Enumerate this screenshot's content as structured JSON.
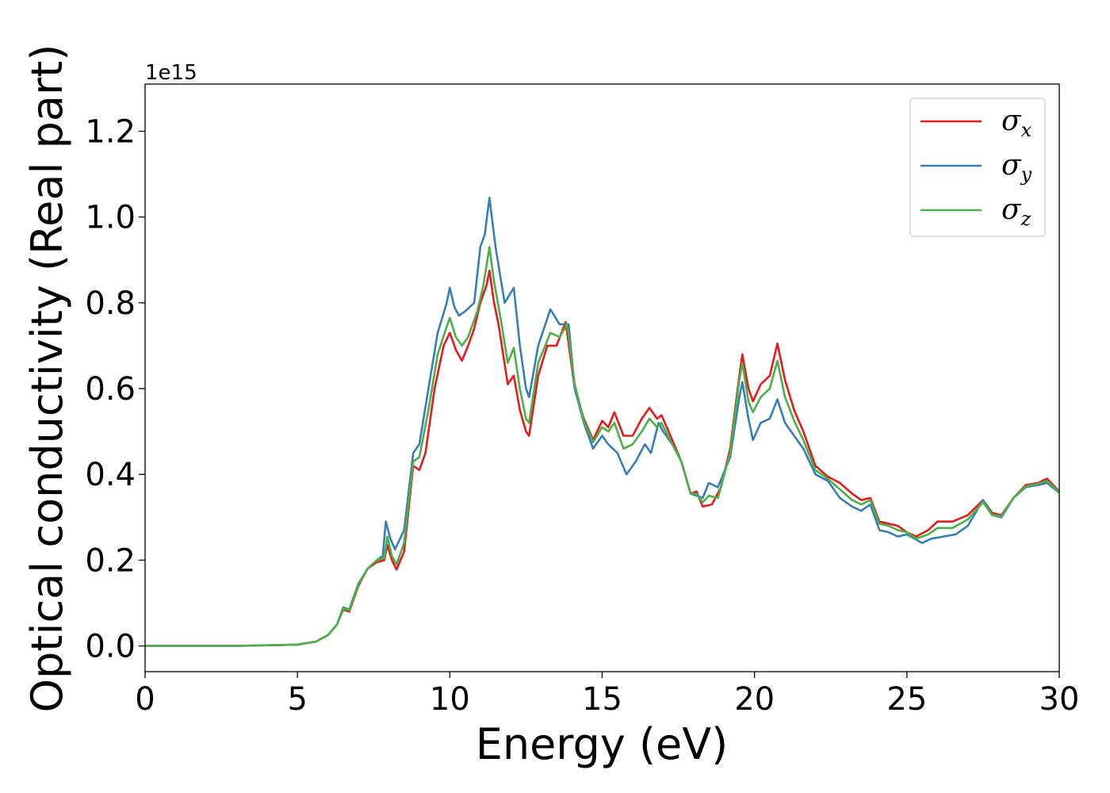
{
  "chart_data": {
    "type": "line",
    "title": "",
    "xlabel": "Energy (eV)",
    "ylabel": "Optical conductivity (Real part)",
    "y_offset_label": "1e15",
    "y_multiplier": 1000000000000000.0,
    "xlim": [
      0,
      30
    ],
    "ylim": [
      -0.06,
      1.31
    ],
    "xticks": [
      0,
      5,
      10,
      15,
      20,
      25,
      30
    ],
    "xtick_labels": [
      "0",
      "5",
      "10",
      "15",
      "20",
      "25",
      "30"
    ],
    "yticks": [
      0.0,
      0.2,
      0.4,
      0.6,
      0.8,
      1.0,
      1.2
    ],
    "ytick_labels": [
      "0.0",
      "0.2",
      "0.4",
      "0.6",
      "0.8",
      "1.0",
      "1.2"
    ],
    "grid": false,
    "legend_position": "top-right",
    "series": [
      {
        "name": "σx",
        "symbol": "σ",
        "subscript": "x",
        "color": "#e41a1c",
        "points": [
          [
            0,
            0
          ],
          [
            3,
            0
          ],
          [
            5,
            0.003
          ],
          [
            5.6,
            0.01
          ],
          [
            6.0,
            0.025
          ],
          [
            6.3,
            0.05
          ],
          [
            6.5,
            0.085
          ],
          [
            6.7,
            0.08
          ],
          [
            7.0,
            0.14
          ],
          [
            7.3,
            0.18
          ],
          [
            7.6,
            0.195
          ],
          [
            7.85,
            0.2
          ],
          [
            7.95,
            0.235
          ],
          [
            8.1,
            0.2
          ],
          [
            8.25,
            0.178
          ],
          [
            8.5,
            0.22
          ],
          [
            8.8,
            0.42
          ],
          [
            9.0,
            0.41
          ],
          [
            9.2,
            0.45
          ],
          [
            9.5,
            0.6
          ],
          [
            9.8,
            0.7
          ],
          [
            10.0,
            0.73
          ],
          [
            10.2,
            0.69
          ],
          [
            10.4,
            0.665
          ],
          [
            10.6,
            0.7
          ],
          [
            10.8,
            0.74
          ],
          [
            11.0,
            0.8
          ],
          [
            11.2,
            0.84
          ],
          [
            11.3,
            0.875
          ],
          [
            11.45,
            0.8
          ],
          [
            11.6,
            0.75
          ],
          [
            11.75,
            0.68
          ],
          [
            11.9,
            0.61
          ],
          [
            12.1,
            0.63
          ],
          [
            12.3,
            0.55
          ],
          [
            12.5,
            0.5
          ],
          [
            12.6,
            0.49
          ],
          [
            12.9,
            0.63
          ],
          [
            13.2,
            0.7
          ],
          [
            13.5,
            0.7
          ],
          [
            13.8,
            0.755
          ],
          [
            14.1,
            0.6
          ],
          [
            14.4,
            0.53
          ],
          [
            14.7,
            0.48
          ],
          [
            15.0,
            0.525
          ],
          [
            15.2,
            0.51
          ],
          [
            15.4,
            0.545
          ],
          [
            15.7,
            0.49
          ],
          [
            16.0,
            0.49
          ],
          [
            16.3,
            0.53
          ],
          [
            16.55,
            0.555
          ],
          [
            16.8,
            0.53
          ],
          [
            16.95,
            0.538
          ],
          [
            17.3,
            0.48
          ],
          [
            17.6,
            0.43
          ],
          [
            17.9,
            0.355
          ],
          [
            18.1,
            0.36
          ],
          [
            18.3,
            0.325
          ],
          [
            18.6,
            0.33
          ],
          [
            18.9,
            0.37
          ],
          [
            19.2,
            0.46
          ],
          [
            19.5,
            0.63
          ],
          [
            19.6,
            0.68
          ],
          [
            19.8,
            0.6
          ],
          [
            19.95,
            0.57
          ],
          [
            20.2,
            0.61
          ],
          [
            20.5,
            0.63
          ],
          [
            20.75,
            0.705
          ],
          [
            21.0,
            0.62
          ],
          [
            21.3,
            0.55
          ],
          [
            21.6,
            0.5
          ],
          [
            22.0,
            0.42
          ],
          [
            22.4,
            0.395
          ],
          [
            22.8,
            0.38
          ],
          [
            23.2,
            0.355
          ],
          [
            23.5,
            0.34
          ],
          [
            23.8,
            0.345
          ],
          [
            24.1,
            0.29
          ],
          [
            24.4,
            0.285
          ],
          [
            24.7,
            0.28
          ],
          [
            25.0,
            0.265
          ],
          [
            25.3,
            0.255
          ],
          [
            25.7,
            0.27
          ],
          [
            26.0,
            0.29
          ],
          [
            26.5,
            0.29
          ],
          [
            27.0,
            0.305
          ],
          [
            27.5,
            0.34
          ],
          [
            27.8,
            0.31
          ],
          [
            28.1,
            0.305
          ],
          [
            28.5,
            0.345
          ],
          [
            28.9,
            0.375
          ],
          [
            29.3,
            0.38
          ],
          [
            29.6,
            0.39
          ],
          [
            30.0,
            0.36
          ]
        ]
      },
      {
        "name": "σy",
        "symbol": "σ",
        "subscript": "y",
        "color": "#377eb8",
        "points": [
          [
            0,
            0
          ],
          [
            3,
            0
          ],
          [
            5,
            0.003
          ],
          [
            5.6,
            0.01
          ],
          [
            6.0,
            0.025
          ],
          [
            6.3,
            0.05
          ],
          [
            6.5,
            0.09
          ],
          [
            6.7,
            0.085
          ],
          [
            7.0,
            0.145
          ],
          [
            7.3,
            0.18
          ],
          [
            7.6,
            0.2
          ],
          [
            7.8,
            0.21
          ],
          [
            7.9,
            0.29
          ],
          [
            8.05,
            0.25
          ],
          [
            8.2,
            0.225
          ],
          [
            8.5,
            0.27
          ],
          [
            8.8,
            0.45
          ],
          [
            9.0,
            0.47
          ],
          [
            9.3,
            0.6
          ],
          [
            9.6,
            0.73
          ],
          [
            9.9,
            0.8
          ],
          [
            10.0,
            0.835
          ],
          [
            10.15,
            0.79
          ],
          [
            10.3,
            0.77
          ],
          [
            10.5,
            0.78
          ],
          [
            10.8,
            0.8
          ],
          [
            11.0,
            0.93
          ],
          [
            11.15,
            0.96
          ],
          [
            11.3,
            1.045
          ],
          [
            11.5,
            0.93
          ],
          [
            11.8,
            0.8
          ],
          [
            12.1,
            0.835
          ],
          [
            12.3,
            0.7
          ],
          [
            12.5,
            0.6
          ],
          [
            12.6,
            0.58
          ],
          [
            12.9,
            0.7
          ],
          [
            13.3,
            0.785
          ],
          [
            13.6,
            0.75
          ],
          [
            13.9,
            0.75
          ],
          [
            14.1,
            0.6
          ],
          [
            14.4,
            0.52
          ],
          [
            14.7,
            0.46
          ],
          [
            15.0,
            0.49
          ],
          [
            15.2,
            0.47
          ],
          [
            15.5,
            0.45
          ],
          [
            15.8,
            0.4
          ],
          [
            16.1,
            0.43
          ],
          [
            16.4,
            0.47
          ],
          [
            16.6,
            0.45
          ],
          [
            16.85,
            0.52
          ],
          [
            17.0,
            0.5
          ],
          [
            17.3,
            0.47
          ],
          [
            17.6,
            0.43
          ],
          [
            17.9,
            0.355
          ],
          [
            18.1,
            0.35
          ],
          [
            18.3,
            0.345
          ],
          [
            18.5,
            0.38
          ],
          [
            18.8,
            0.37
          ],
          [
            19.2,
            0.44
          ],
          [
            19.5,
            0.58
          ],
          [
            19.6,
            0.615
          ],
          [
            19.8,
            0.53
          ],
          [
            19.95,
            0.48
          ],
          [
            20.2,
            0.52
          ],
          [
            20.5,
            0.53
          ],
          [
            20.75,
            0.575
          ],
          [
            21.0,
            0.52
          ],
          [
            21.3,
            0.49
          ],
          [
            21.6,
            0.46
          ],
          [
            22.0,
            0.4
          ],
          [
            22.4,
            0.385
          ],
          [
            22.8,
            0.345
          ],
          [
            23.2,
            0.325
          ],
          [
            23.5,
            0.315
          ],
          [
            23.8,
            0.33
          ],
          [
            24.1,
            0.27
          ],
          [
            24.4,
            0.265
          ],
          [
            24.7,
            0.255
          ],
          [
            25.0,
            0.26
          ],
          [
            25.5,
            0.24
          ],
          [
            25.8,
            0.25
          ],
          [
            26.2,
            0.255
          ],
          [
            26.6,
            0.26
          ],
          [
            27.0,
            0.28
          ],
          [
            27.5,
            0.34
          ],
          [
            27.8,
            0.305
          ],
          [
            28.1,
            0.3
          ],
          [
            28.5,
            0.345
          ],
          [
            28.9,
            0.37
          ],
          [
            29.3,
            0.375
          ],
          [
            29.6,
            0.38
          ],
          [
            30.0,
            0.357
          ]
        ]
      },
      {
        "name": "σz",
        "symbol": "σ",
        "subscript": "z",
        "color": "#4daf4a",
        "points": [
          [
            0,
            0
          ],
          [
            3,
            0
          ],
          [
            5,
            0.003
          ],
          [
            5.6,
            0.01
          ],
          [
            6.0,
            0.025
          ],
          [
            6.3,
            0.05
          ],
          [
            6.5,
            0.088
          ],
          [
            6.7,
            0.083
          ],
          [
            7.0,
            0.143
          ],
          [
            7.3,
            0.18
          ],
          [
            7.6,
            0.2
          ],
          [
            7.85,
            0.205
          ],
          [
            7.95,
            0.255
          ],
          [
            8.1,
            0.21
          ],
          [
            8.25,
            0.19
          ],
          [
            8.5,
            0.24
          ],
          [
            8.8,
            0.43
          ],
          [
            9.0,
            0.44
          ],
          [
            9.3,
            0.55
          ],
          [
            9.6,
            0.68
          ],
          [
            9.9,
            0.745
          ],
          [
            10.0,
            0.765
          ],
          [
            10.2,
            0.72
          ],
          [
            10.4,
            0.7
          ],
          [
            10.6,
            0.72
          ],
          [
            10.9,
            0.78
          ],
          [
            11.1,
            0.84
          ],
          [
            11.3,
            0.93
          ],
          [
            11.45,
            0.85
          ],
          [
            11.7,
            0.75
          ],
          [
            11.9,
            0.66
          ],
          [
            12.1,
            0.695
          ],
          [
            12.3,
            0.6
          ],
          [
            12.5,
            0.53
          ],
          [
            12.6,
            0.52
          ],
          [
            12.9,
            0.66
          ],
          [
            13.3,
            0.73
          ],
          [
            13.6,
            0.72
          ],
          [
            13.85,
            0.75
          ],
          [
            14.1,
            0.61
          ],
          [
            14.4,
            0.525
          ],
          [
            14.7,
            0.475
          ],
          [
            15.0,
            0.51
          ],
          [
            15.2,
            0.5
          ],
          [
            15.4,
            0.52
          ],
          [
            15.7,
            0.46
          ],
          [
            16.0,
            0.47
          ],
          [
            16.3,
            0.5
          ],
          [
            16.55,
            0.53
          ],
          [
            16.8,
            0.51
          ],
          [
            16.95,
            0.52
          ],
          [
            17.3,
            0.47
          ],
          [
            17.6,
            0.43
          ],
          [
            17.9,
            0.355
          ],
          [
            18.1,
            0.355
          ],
          [
            18.3,
            0.335
          ],
          [
            18.5,
            0.35
          ],
          [
            18.8,
            0.345
          ],
          [
            19.2,
            0.45
          ],
          [
            19.5,
            0.62
          ],
          [
            19.6,
            0.66
          ],
          [
            19.8,
            0.57
          ],
          [
            19.95,
            0.545
          ],
          [
            20.2,
            0.58
          ],
          [
            20.5,
            0.6
          ],
          [
            20.75,
            0.665
          ],
          [
            21.0,
            0.58
          ],
          [
            21.3,
            0.525
          ],
          [
            21.6,
            0.48
          ],
          [
            22.0,
            0.41
          ],
          [
            22.4,
            0.39
          ],
          [
            22.8,
            0.365
          ],
          [
            23.2,
            0.34
          ],
          [
            23.5,
            0.33
          ],
          [
            23.8,
            0.34
          ],
          [
            24.1,
            0.285
          ],
          [
            24.4,
            0.28
          ],
          [
            24.7,
            0.27
          ],
          [
            25.0,
            0.265
          ],
          [
            25.3,
            0.25
          ],
          [
            25.7,
            0.26
          ],
          [
            26.0,
            0.275
          ],
          [
            26.5,
            0.275
          ],
          [
            27.0,
            0.295
          ],
          [
            27.5,
            0.335
          ],
          [
            27.8,
            0.305
          ],
          [
            28.1,
            0.303
          ],
          [
            28.5,
            0.345
          ],
          [
            28.9,
            0.372
          ],
          [
            29.3,
            0.378
          ],
          [
            29.6,
            0.385
          ],
          [
            30.0,
            0.358
          ]
        ]
      }
    ]
  }
}
